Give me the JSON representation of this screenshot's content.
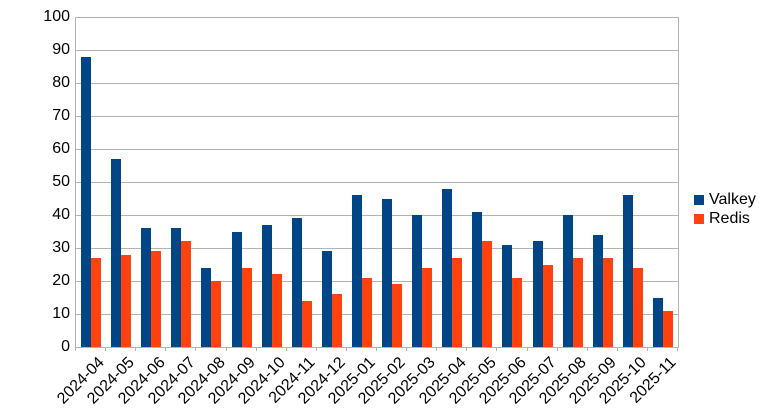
{
  "chart_data": {
    "type": "bar",
    "title": "",
    "xlabel": "",
    "ylabel": "",
    "categories": [
      "2024-04",
      "2024-05",
      "2024-06",
      "2024-07",
      "2024-08",
      "2024-09",
      "2024-10",
      "2024-11",
      "2024-12",
      "2025-01",
      "2025-02",
      "2025-03",
      "2025-04",
      "2025-05",
      "2025-06",
      "2025-07",
      "2025-08",
      "2025-09",
      "2025-10",
      "2025-11"
    ],
    "series": [
      {
        "name": "Valkey",
        "color": "#004586",
        "values": [
          88,
          57,
          36,
          36,
          24,
          35,
          37,
          39,
          29,
          46,
          45,
          40,
          48,
          41,
          31,
          32,
          40,
          34,
          46,
          15
        ]
      },
      {
        "name": "Redis",
        "color": "#ff420e",
        "values": [
          27,
          28,
          29,
          32,
          20,
          24,
          22,
          14,
          16,
          21,
          19,
          24,
          27,
          32,
          21,
          25,
          27,
          27,
          24,
          11
        ]
      }
    ],
    "ylim": [
      0,
      100
    ],
    "yticks": [
      0,
      10,
      20,
      30,
      40,
      50,
      60,
      70,
      80,
      90,
      100
    ],
    "grid": "horizontal",
    "legend_position": "right"
  },
  "colors": {
    "grid": "#b3b3b3",
    "axis": "#b3b3b3",
    "text": "#000000",
    "background": "#ffffff"
  }
}
